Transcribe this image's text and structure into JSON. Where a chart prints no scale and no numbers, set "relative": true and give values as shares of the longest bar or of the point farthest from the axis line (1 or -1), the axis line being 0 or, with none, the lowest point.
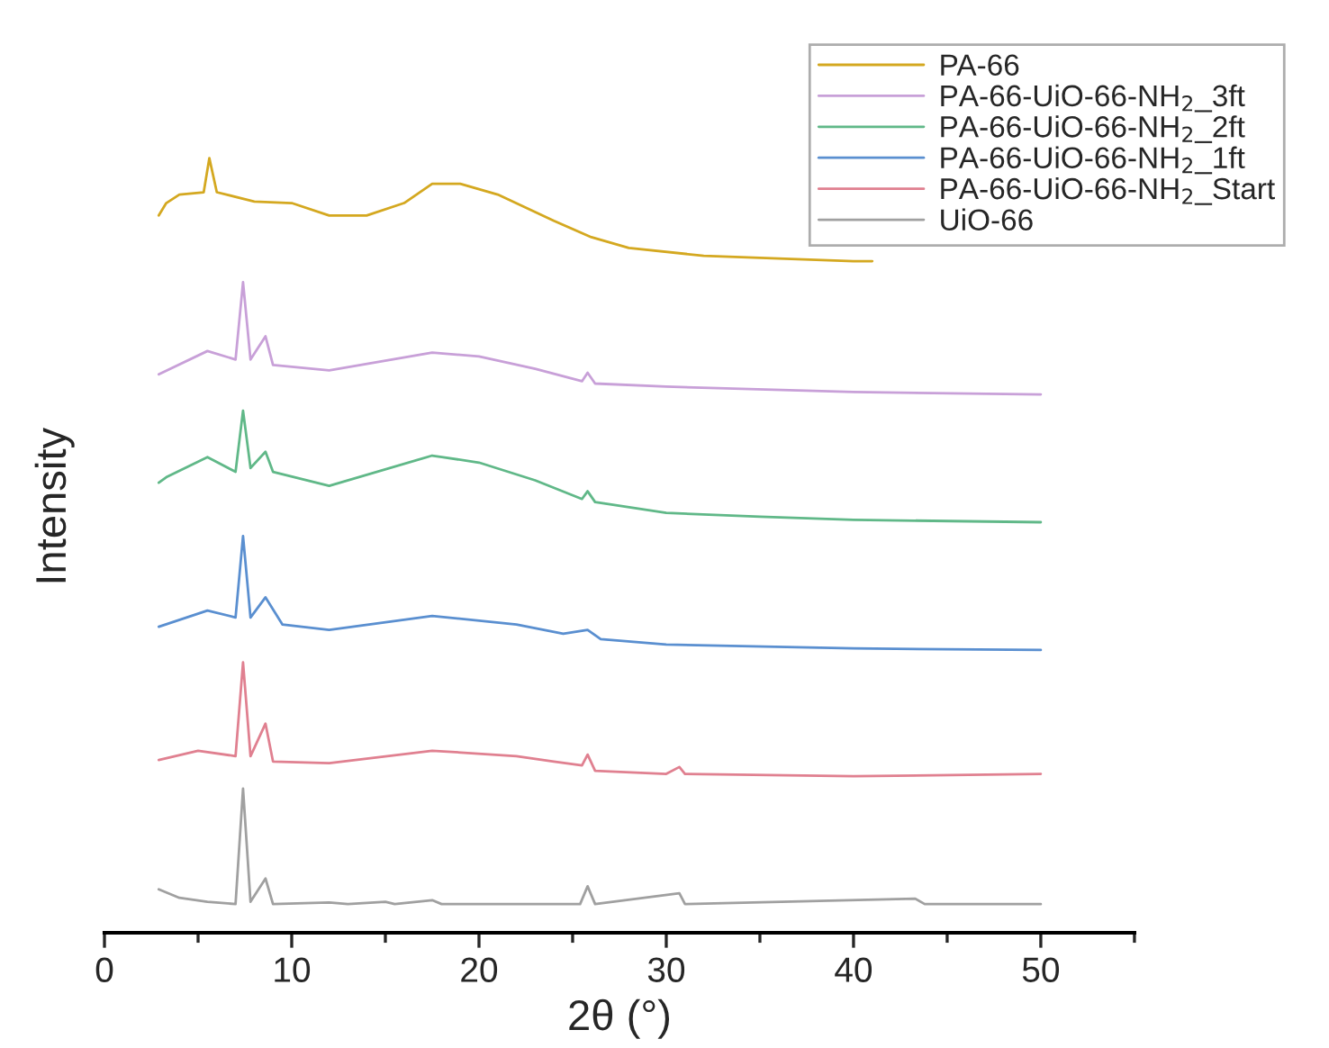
{
  "chart_data": {
    "type": "line",
    "relative": true,
    "xlabel": "2θ (°)",
    "ylabel": "Intensity",
    "xlim": [
      0,
      55
    ],
    "xticks": [
      0,
      {
        "value": 5,
        "label": null
      },
      10,
      {
        "value": 15,
        "label": null
      },
      20,
      {
        "value": 25,
        "label": null
      },
      30,
      {
        "value": 35,
        "label": null
      },
      40,
      {
        "value": 45,
        "label": null
      },
      50,
      {
        "value": 55,
        "label": null
      }
    ],
    "tick_labels": "x",
    "grid": false,
    "legend": "top right",
    "marker": "none",
    "line_style": "solid",
    "series": [
      {
        "name": "PA-66",
        "color": "#d4a820",
        "x": [
          2.9,
          3.3,
          4,
          5.3,
          5.6,
          6,
          8,
          10,
          12,
          14,
          16,
          17.5,
          19,
          21,
          24,
          26,
          28,
          32,
          40,
          41
        ],
        "values": [
          0.926,
          0.942,
          0.953,
          0.956,
          1.0,
          0.956,
          0.944,
          0.942,
          0.926,
          0.926,
          0.942,
          0.967,
          0.967,
          0.953,
          0.919,
          0.898,
          0.884,
          0.874,
          0.867,
          0.867
        ]
      },
      {
        "name": "PA-66-UiO-66-NH$_{2}$_3ft",
        "color": "#c8a0d8",
        "x": [
          2.9,
          5.5,
          7,
          7.4,
          7.8,
          8.6,
          9,
          12,
          17.5,
          20,
          23,
          25.5,
          25.8,
          26.2,
          30,
          40,
          50
        ],
        "values": [
          0.721,
          0.751,
          0.74,
          0.84,
          0.74,
          0.77,
          0.733,
          0.726,
          0.749,
          0.744,
          0.728,
          0.712,
          0.723,
          0.709,
          0.705,
          0.698,
          0.695
        ]
      },
      {
        "name": "PA-66-UiO-66-NH$_{2}$_2ft",
        "color": "#60b888",
        "x": [
          2.9,
          3.3,
          5.5,
          7,
          7.4,
          7.8,
          8.6,
          9,
          12,
          17.5,
          20,
          23,
          25.5,
          25.8,
          26.2,
          30,
          35,
          40,
          50
        ],
        "values": [
          0.581,
          0.588,
          0.614,
          0.595,
          0.674,
          0.6,
          0.621,
          0.595,
          0.577,
          0.616,
          0.607,
          0.584,
          0.56,
          0.57,
          0.556,
          0.542,
          0.537,
          0.533,
          0.53
        ]
      },
      {
        "name": "PA-66-UiO-66-NH$_{2}$_1ft",
        "color": "#5a8fd0",
        "x": [
          2.9,
          5.5,
          7,
          7.4,
          7.8,
          8.6,
          9.5,
          12,
          17.5,
          22,
          24.5,
          25.8,
          26.5,
          30,
          40,
          50
        ],
        "values": [
          0.395,
          0.416,
          0.407,
          0.512,
          0.407,
          0.433,
          0.398,
          0.391,
          0.409,
          0.398,
          0.386,
          0.391,
          0.379,
          0.372,
          0.367,
          0.365
        ]
      },
      {
        "name": "PA-66-UiO-66-NH$_{2}$_Start",
        "color": "#e08090",
        "x": [
          2.9,
          5,
          7,
          7.4,
          7.8,
          8.6,
          9,
          12,
          17.5,
          22,
          24,
          25.5,
          25.8,
          26.2,
          30,
          30.7,
          31,
          40,
          50
        ],
        "values": [
          0.223,
          0.235,
          0.228,
          0.349,
          0.228,
          0.27,
          0.221,
          0.219,
          0.235,
          0.228,
          0.221,
          0.216,
          0.23,
          0.209,
          0.205,
          0.214,
          0.205,
          0.202,
          0.205
        ]
      },
      {
        "name": "UiO-66",
        "color": "#a0a0a0",
        "x": [
          2.9,
          4,
          5.5,
          7,
          7.4,
          7.8,
          8.6,
          9,
          12,
          13,
          15,
          15.5,
          17.5,
          18,
          25.4,
          25.8,
          26.2,
          30.7,
          31,
          43.3,
          43.8,
          50
        ],
        "values": [
          0.056,
          0.045,
          0.04,
          0.037,
          0.186,
          0.04,
          0.07,
          0.037,
          0.039,
          0.037,
          0.04,
          0.037,
          0.042,
          0.037,
          0.037,
          0.06,
          0.037,
          0.051,
          0.037,
          0.044,
          0.037,
          0.037
        ]
      }
    ]
  }
}
